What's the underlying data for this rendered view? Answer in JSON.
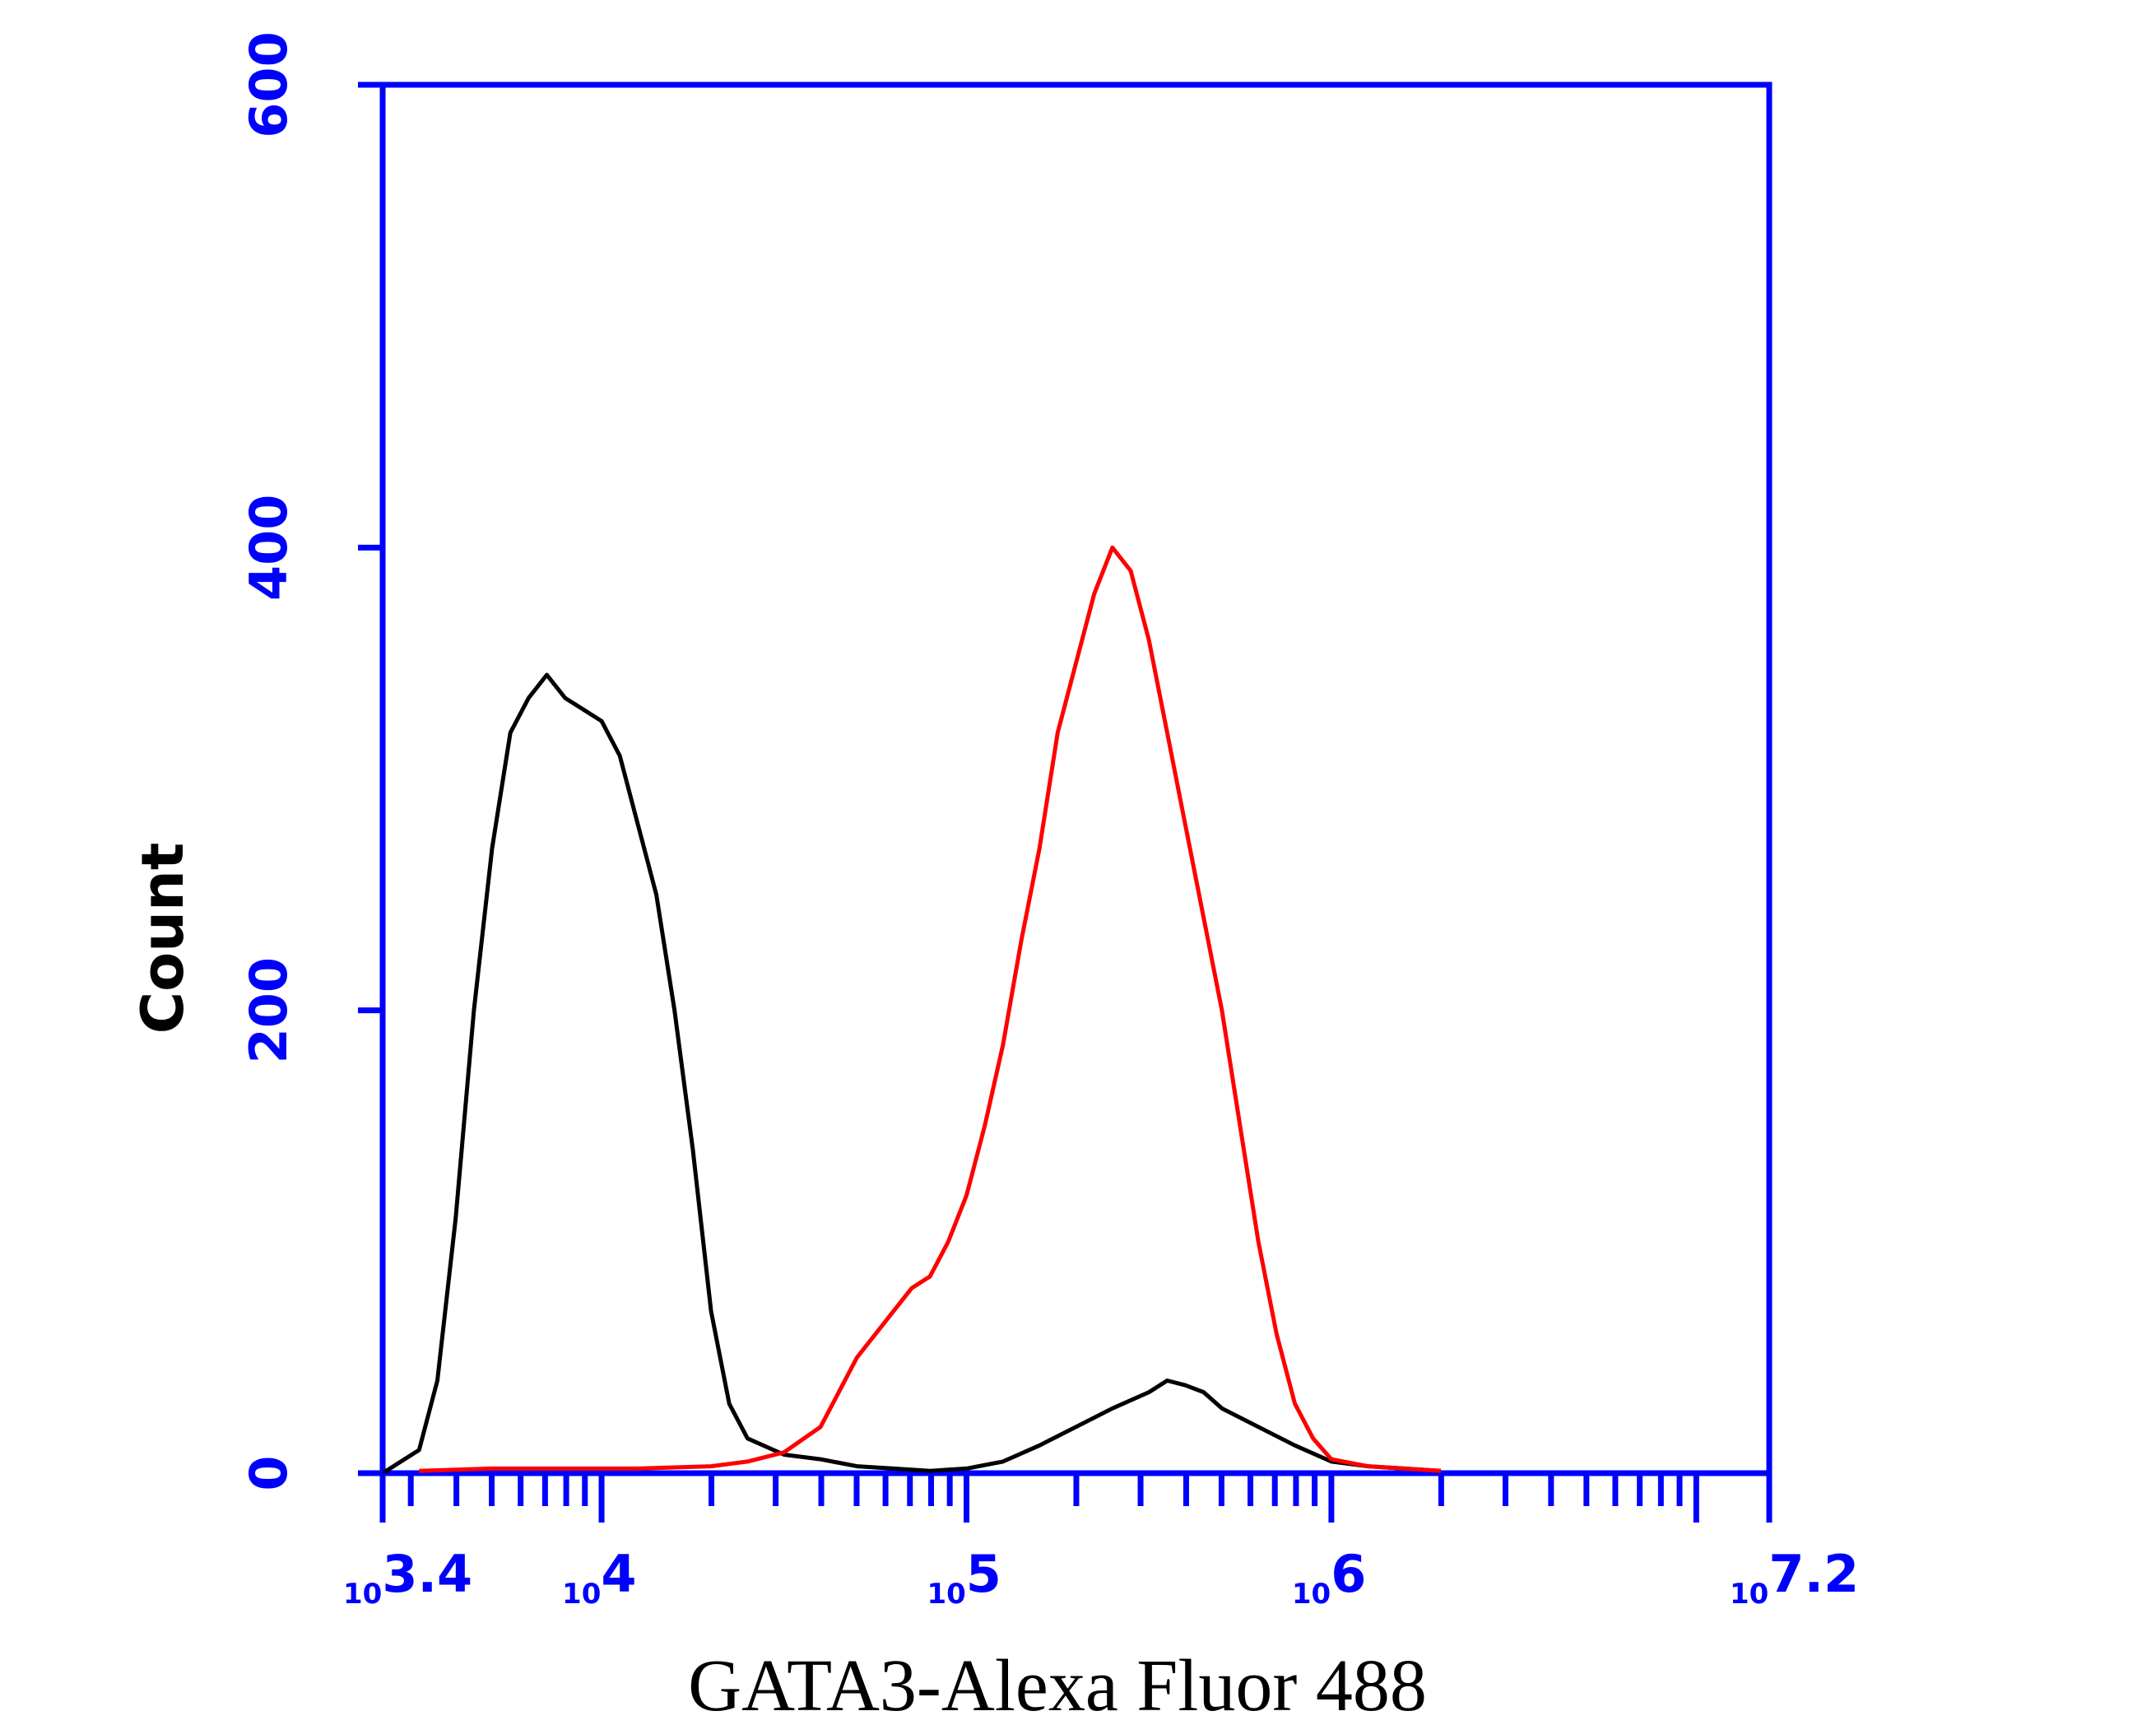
{
  "chart_data": {
    "type": "line",
    "title": "",
    "xlabel": "GATA3-Alexa Fluor 488",
    "ylabel": "Count",
    "x_scale": "log10",
    "xlim": [
      3.4,
      7.2
    ],
    "ylim": [
      0,
      600
    ],
    "y_ticks": [
      "0",
      "200",
      "400",
      "600"
    ],
    "x_ticks": [
      {
        "base": "10",
        "exp": "3.4",
        "value": 3.4
      },
      {
        "base": "10",
        "exp": "4",
        "value": 4
      },
      {
        "base": "10",
        "exp": "5",
        "value": 5
      },
      {
        "base": "10",
        "exp": "6",
        "value": 6
      },
      {
        "base": "10",
        "exp": "7.2",
        "value": 7.2
      }
    ],
    "grid": false,
    "legend": "none",
    "colors": {
      "axis": "#0000ff",
      "control": "#000000",
      "sample": "#ff0000"
    },
    "series": [
      {
        "color": "#000000",
        "points": [
          [
            3.4,
            0
          ],
          [
            3.45,
            5
          ],
          [
            3.5,
            10
          ],
          [
            3.55,
            40
          ],
          [
            3.6,
            110
          ],
          [
            3.65,
            200
          ],
          [
            3.7,
            270
          ],
          [
            3.75,
            320
          ],
          [
            3.8,
            335
          ],
          [
            3.85,
            345
          ],
          [
            3.9,
            335
          ],
          [
            3.95,
            330
          ],
          [
            4.0,
            325
          ],
          [
            4.05,
            310
          ],
          [
            4.1,
            280
          ],
          [
            4.15,
            250
          ],
          [
            4.2,
            200
          ],
          [
            4.25,
            140
          ],
          [
            4.3,
            70
          ],
          [
            4.35,
            30
          ],
          [
            4.4,
            15
          ],
          [
            4.5,
            8
          ],
          [
            4.6,
            6
          ],
          [
            4.7,
            3
          ],
          [
            4.8,
            2
          ],
          [
            4.9,
            1
          ],
          [
            5.0,
            2
          ],
          [
            5.1,
            5
          ],
          [
            5.2,
            12
          ],
          [
            5.3,
            20
          ],
          [
            5.4,
            28
          ],
          [
            5.5,
            35
          ],
          [
            5.55,
            40
          ],
          [
            5.6,
            38
          ],
          [
            5.65,
            35
          ],
          [
            5.7,
            28
          ],
          [
            5.8,
            20
          ],
          [
            5.9,
            12
          ],
          [
            6.0,
            5
          ],
          [
            6.1,
            3
          ],
          [
            6.2,
            2
          ],
          [
            6.3,
            1
          ]
        ]
      },
      {
        "color": "#ff0000",
        "points": [
          [
            3.5,
            1
          ],
          [
            3.7,
            2
          ],
          [
            3.9,
            2
          ],
          [
            4.1,
            2
          ],
          [
            4.3,
            3
          ],
          [
            4.4,
            5
          ],
          [
            4.5,
            9
          ],
          [
            4.6,
            20
          ],
          [
            4.65,
            35
          ],
          [
            4.7,
            50
          ],
          [
            4.75,
            60
          ],
          [
            4.8,
            70
          ],
          [
            4.85,
            80
          ],
          [
            4.9,
            85
          ],
          [
            4.95,
            100
          ],
          [
            5.0,
            120
          ],
          [
            5.05,
            150
          ],
          [
            5.1,
            185
          ],
          [
            5.15,
            230
          ],
          [
            5.2,
            270
          ],
          [
            5.25,
            320
          ],
          [
            5.3,
            350
          ],
          [
            5.35,
            380
          ],
          [
            5.4,
            400
          ],
          [
            5.45,
            390
          ],
          [
            5.5,
            360
          ],
          [
            5.55,
            320
          ],
          [
            5.6,
            280
          ],
          [
            5.65,
            240
          ],
          [
            5.7,
            200
          ],
          [
            5.75,
            150
          ],
          [
            5.8,
            100
          ],
          [
            5.85,
            60
          ],
          [
            5.9,
            30
          ],
          [
            5.95,
            15
          ],
          [
            6.0,
            6
          ],
          [
            6.1,
            3
          ],
          [
            6.2,
            2
          ],
          [
            6.3,
            1
          ]
        ]
      }
    ]
  }
}
